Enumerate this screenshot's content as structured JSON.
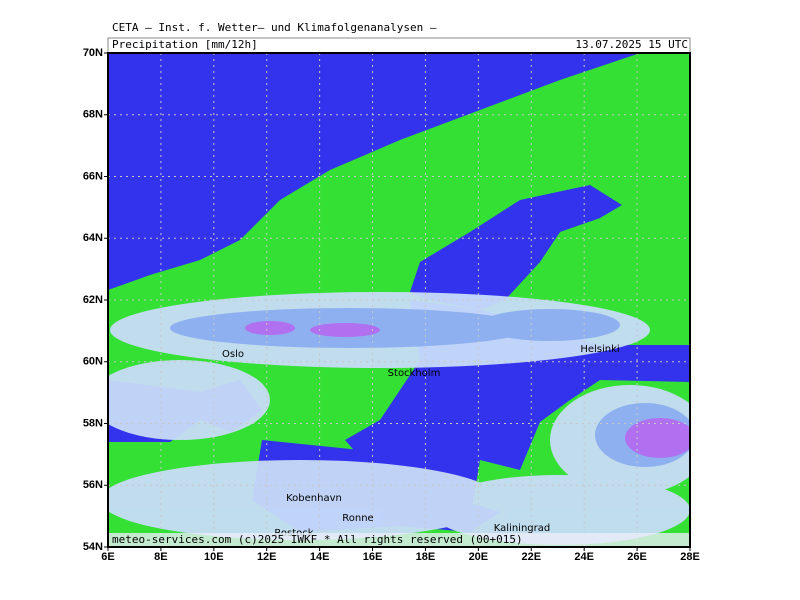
{
  "header": {
    "title": "CETA — Inst. f. Wetter— und Klimafolgenanalysen —",
    "parameter": "Precipitation [mm/12h]",
    "valid": "13.07.2025 15 UTC"
  },
  "map": {
    "xlim": [
      6,
      28
    ],
    "ylim": [
      54,
      70
    ],
    "xticks": [
      {
        "value": 6,
        "label": "6E"
      },
      {
        "value": 8,
        "label": "8E"
      },
      {
        "value": 10,
        "label": "10E"
      },
      {
        "value": 12,
        "label": "12E"
      },
      {
        "value": 14,
        "label": "14E"
      },
      {
        "value": 16,
        "label": "16E"
      },
      {
        "value": 18,
        "label": "18E"
      },
      {
        "value": 20,
        "label": "20E"
      },
      {
        "value": 22,
        "label": "22E"
      },
      {
        "value": 24,
        "label": "24E"
      },
      {
        "value": 26,
        "label": "26E"
      },
      {
        "value": 28,
        "label": "28E"
      }
    ],
    "yticks": [
      {
        "value": 54,
        "label": "54N"
      },
      {
        "value": 56,
        "label": "56N"
      },
      {
        "value": 58,
        "label": "58N"
      },
      {
        "value": 60,
        "label": "60N"
      },
      {
        "value": 62,
        "label": "62N"
      },
      {
        "value": 64,
        "label": "64N"
      },
      {
        "value": 66,
        "label": "66N"
      },
      {
        "value": 68,
        "label": "68N"
      },
      {
        "value": 70,
        "label": "70N"
      }
    ],
    "cities": [
      "Oslo",
      "Stockholm",
      "Helsinki",
      "Kobenhavn",
      "Ronne",
      "Rostock",
      "Kaliningrad"
    ]
  },
  "footer": "meteo-services.com (c)2025 IWKF * All rights reserved (00+015)"
}
